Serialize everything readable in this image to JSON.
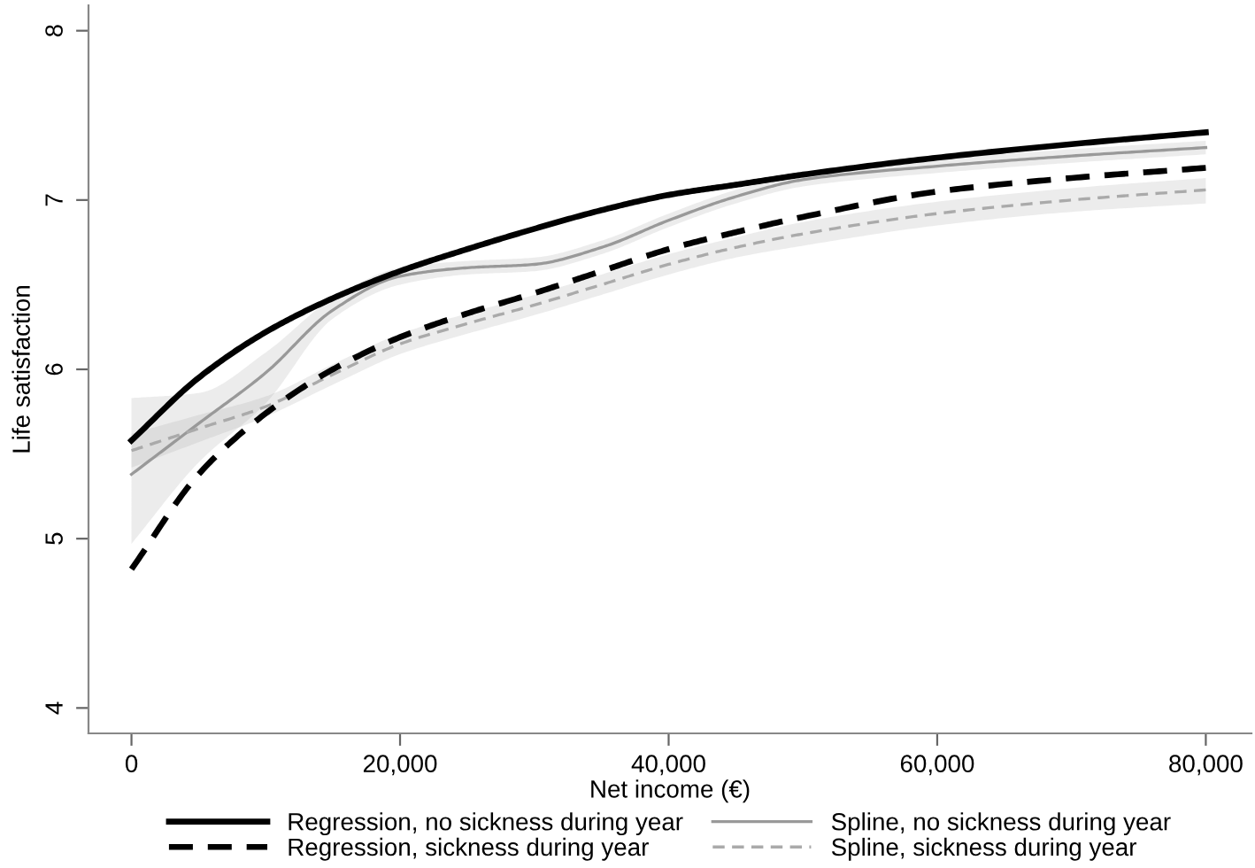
{
  "chart_data": {
    "type": "line",
    "xlabel": "Net income (€)",
    "ylabel": "Life satisfaction",
    "x": [
      0,
      5000,
      10000,
      15000,
      20000,
      25000,
      30000,
      35000,
      40000,
      45000,
      50000,
      60000,
      70000,
      80000
    ],
    "xlim": [
      -3200,
      83400
    ],
    "ylim": [
      3.85,
      8.15
    ],
    "xticks": [
      {
        "value": 0,
        "label": "0"
      },
      {
        "value": 20000,
        "label": "20,000"
      },
      {
        "value": 40000,
        "label": "40,000"
      },
      {
        "value": 60000,
        "label": "60,000"
      },
      {
        "value": 80000,
        "label": "80,000"
      }
    ],
    "yticks": [
      4,
      5,
      6,
      7,
      8
    ],
    "grid": false,
    "legend": "bottom",
    "marker": "none",
    "series": [
      {
        "name": "Regression, no sickness during year",
        "color": "#000000",
        "line_style": "solid",
        "values": [
          5.58,
          5.95,
          6.22,
          6.42,
          6.58,
          6.71,
          6.83,
          6.94,
          7.03,
          7.09,
          7.15,
          7.25,
          7.33,
          7.4
        ]
      },
      {
        "name": "Regression, sickness during year",
        "color": "#000000",
        "line_style": "dashed",
        "values": [
          4.82,
          5.38,
          5.74,
          6.0,
          6.19,
          6.33,
          6.45,
          6.58,
          6.71,
          6.81,
          6.9,
          7.05,
          7.13,
          7.19
        ]
      },
      {
        "name": "Spline, no sickness during year",
        "color": "#999999",
        "line_style": "solid",
        "values": [
          5.38,
          5.68,
          5.98,
          6.35,
          6.55,
          6.6,
          6.62,
          6.72,
          6.88,
          7.02,
          7.12,
          7.2,
          7.26,
          7.31
        ],
        "lower": [
          4.97,
          5.45,
          5.8,
          6.3,
          6.5,
          6.56,
          6.58,
          6.68,
          6.84,
          6.98,
          7.08,
          7.16,
          7.22,
          7.27
        ],
        "upper": [
          5.83,
          5.86,
          6.1,
          6.42,
          6.6,
          6.64,
          6.66,
          6.76,
          6.92,
          7.06,
          7.16,
          7.24,
          7.3,
          7.35
        ]
      },
      {
        "name": "Spline, sickness during year",
        "color": "#aaaaaa",
        "line_style": "dashed",
        "values": [
          5.52,
          5.65,
          5.78,
          5.97,
          6.15,
          6.27,
          6.38,
          6.5,
          6.62,
          6.72,
          6.8,
          6.92,
          7.0,
          7.06
        ],
        "lower": [
          5.42,
          5.57,
          5.72,
          5.91,
          6.09,
          6.21,
          6.32,
          6.44,
          6.56,
          6.66,
          6.73,
          6.85,
          6.93,
          6.98
        ],
        "upper": [
          5.62,
          5.73,
          5.84,
          6.03,
          6.21,
          6.33,
          6.44,
          6.56,
          6.68,
          6.78,
          6.87,
          6.99,
          7.07,
          7.13
        ]
      }
    ]
  }
}
